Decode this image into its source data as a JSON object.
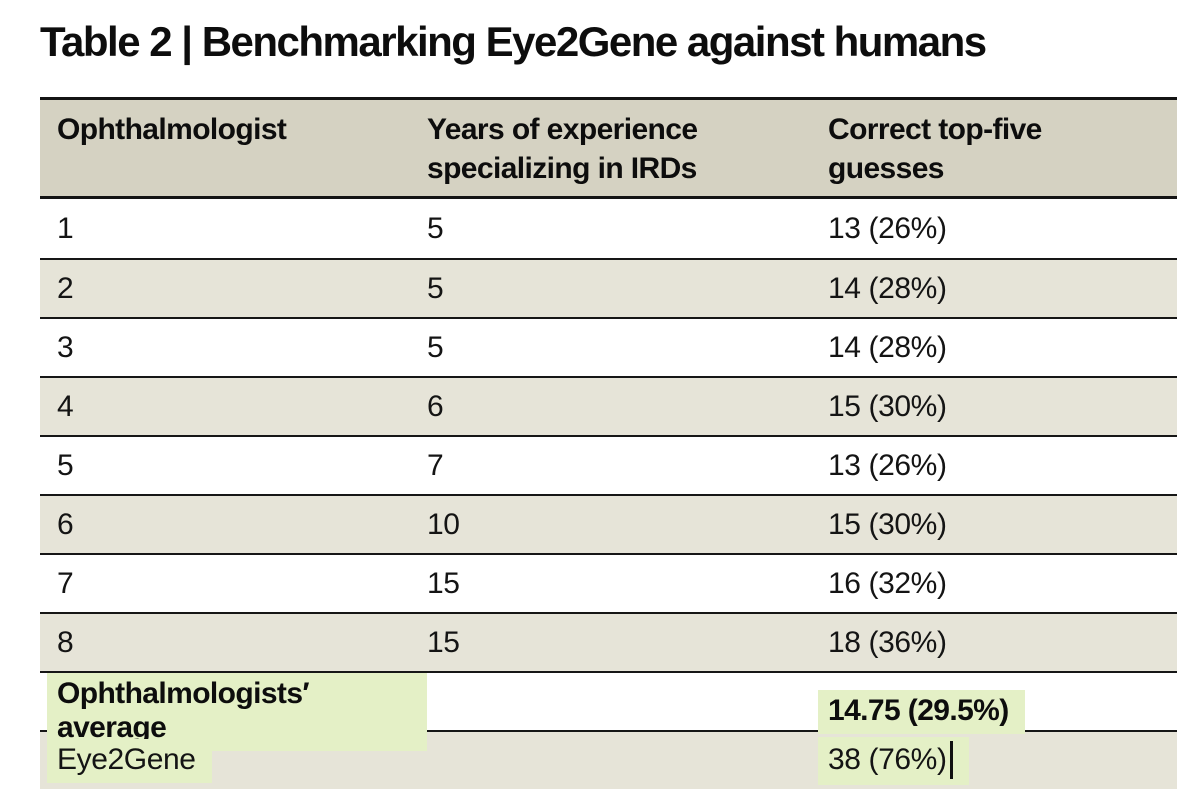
{
  "title": "Table 2 | Benchmarking Eye2Gene against humans",
  "table": {
    "headers": [
      "Ophthalmologist",
      "Years of experience\nspecializing in IRDs",
      "Correct top-five\nguesses"
    ],
    "rows": [
      {
        "id": "1",
        "years": "5",
        "guesses": "13 (26%)"
      },
      {
        "id": "2",
        "years": "5",
        "guesses": "14 (28%)"
      },
      {
        "id": "3",
        "years": "5",
        "guesses": "14 (28%)"
      },
      {
        "id": "4",
        "years": "6",
        "guesses": "15 (30%)"
      },
      {
        "id": "5",
        "years": "7",
        "guesses": "13 (26%)"
      },
      {
        "id": "6",
        "years": "10",
        "guesses": "15 (30%)"
      },
      {
        "id": "7",
        "years": "15",
        "guesses": "16 (32%)"
      },
      {
        "id": "8",
        "years": "15",
        "guesses": "18 (36%)"
      }
    ],
    "average_row": {
      "label": "Ophthalmologists′ average",
      "guesses": "14.75 (29.5%)"
    },
    "eye2gene_row": {
      "label": "Eye2Gene",
      "guesses": "38 (76%)"
    }
  },
  "colors": {
    "header_bg": "#d5d2c2",
    "alt_row_bg": "#e6e4d8",
    "highlight_green": "#e4f0c6",
    "rule_black": "#161616",
    "text": "#111111"
  }
}
